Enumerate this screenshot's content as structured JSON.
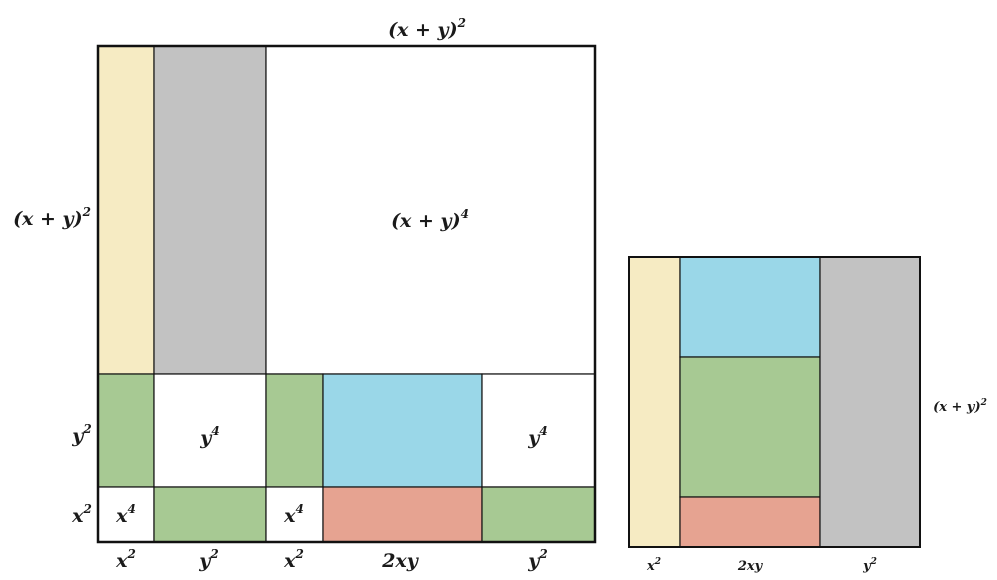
{
  "colors": {
    "yellow": "#f6ebc3",
    "gray": "#c2c2c2",
    "green": "#a7c993",
    "blue": "#9ad7e8",
    "salmon": "#e6a391",
    "white": "#ffffff",
    "stroke": "#111111"
  },
  "big_square": {
    "top_label": {
      "base": "(x + y)",
      "exp": "2"
    },
    "left_label": {
      "base": "(x + y)",
      "exp": "2"
    },
    "center_label": {
      "base": "(x + y)",
      "exp": "4"
    },
    "cells": {
      "y4_a": {
        "base": "y",
        "exp": "4"
      },
      "y4_b": {
        "base": "y",
        "exp": "4"
      },
      "x4_a": {
        "base": "x",
        "exp": "4"
      },
      "x4_b": {
        "base": "x",
        "exp": "4"
      }
    },
    "row_labels": {
      "y2": {
        "base": "y",
        "exp": "2"
      },
      "x2": {
        "base": "x",
        "exp": "2"
      }
    },
    "column_labels": {
      "x2_a": {
        "base": "x",
        "exp": "2"
      },
      "y2_a": {
        "base": "y",
        "exp": "2"
      },
      "x2_b": {
        "base": "x",
        "exp": "2"
      },
      "two_xy": {
        "base": "2xy",
        "exp": ""
      },
      "y2_b": {
        "base": "y",
        "exp": "2"
      }
    }
  },
  "small_square": {
    "right_label": {
      "base": "(x + y)",
      "exp": "2"
    },
    "column_labels": {
      "x2": {
        "base": "x",
        "exp": "2"
      },
      "two_xy": {
        "base": "2xy",
        "exp": ""
      },
      "y2": {
        "base": "y",
        "exp": "2"
      }
    }
  }
}
